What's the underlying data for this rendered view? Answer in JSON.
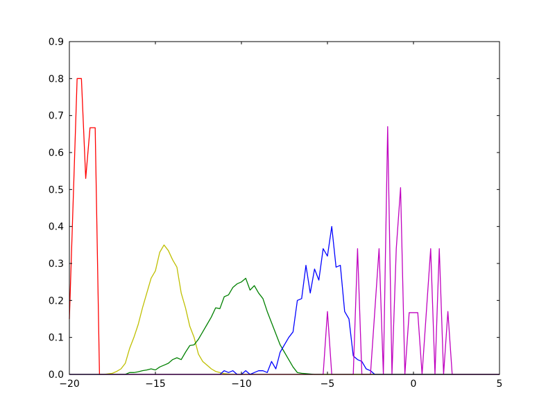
{
  "chart_data": {
    "type": "line",
    "xlim": [
      -20,
      5
    ],
    "xticks": [
      {
        "value": -20,
        "label": "−20"
      },
      {
        "value": -15,
        "label": "−15"
      },
      {
        "value": -10,
        "label": "−10"
      },
      {
        "value": -5,
        "label": "−5"
      },
      0,
      5
    ],
    "ylim": [
      0,
      0.9
    ],
    "yticks": [
      {
        "value": 0,
        "label": "0.0"
      },
      0.1,
      0.2,
      0.3,
      0.4,
      0.5,
      0.6,
      0.7,
      0.8,
      0.9
    ],
    "grid": false,
    "series": [
      {
        "color": "#ff0000",
        "x": [
          -20,
          -19.55,
          -19.3,
          -19.05,
          -18.8,
          -18.5,
          -18.25,
          5
        ],
        "values": [
          0.15,
          0.8,
          0.8,
          0.53,
          0.667,
          0.667,
          0,
          0
        ]
      },
      {
        "color": "#bfbf00",
        "x": [
          -20,
          -18,
          -17.5,
          -17.25,
          -17,
          -16.75,
          -16.5,
          -16.25,
          -16,
          -15.75,
          -15.5,
          -15.25,
          -15,
          -14.75,
          -14.5,
          -14.25,
          -14,
          -13.75,
          -13.5,
          -13.25,
          -13,
          -12.75,
          -12.5,
          -12.25,
          -12,
          -11.75,
          -11.5,
          -11.25,
          -11,
          -10.5,
          5
        ],
        "values": [
          0,
          0,
          0.003,
          0.008,
          0.015,
          0.03,
          0.07,
          0.1,
          0.135,
          0.18,
          0.22,
          0.26,
          0.28,
          0.33,
          0.35,
          0.335,
          0.31,
          0.29,
          0.22,
          0.18,
          0.13,
          0.1,
          0.055,
          0.035,
          0.025,
          0.015,
          0.008,
          0.005,
          0.002,
          0,
          0
        ]
      },
      {
        "color": "#008000",
        "x": [
          -20,
          -16.75,
          -16.5,
          -16.25,
          -16,
          -15.75,
          -15.5,
          -15.25,
          -15,
          -14.75,
          -14.5,
          -14.25,
          -14,
          -13.75,
          -13.5,
          -13.25,
          -13,
          -12.75,
          -12.5,
          -12.25,
          -12,
          -11.75,
          -11.5,
          -11.25,
          -11,
          -10.75,
          -10.5,
          -10.25,
          -10,
          -9.75,
          -9.5,
          -9.25,
          -9,
          -8.75,
          -8.5,
          -8.25,
          -8,
          -7.75,
          -7.5,
          -7.25,
          -7,
          -6.75,
          -6.5,
          -6.25,
          -5.75,
          5
        ],
        "values": [
          0,
          0,
          0.005,
          0.005,
          0.007,
          0.01,
          0.012,
          0.015,
          0.012,
          0.02,
          0.025,
          0.03,
          0.04,
          0.045,
          0.04,
          0.06,
          0.078,
          0.08,
          0.095,
          0.115,
          0.135,
          0.155,
          0.18,
          0.178,
          0.21,
          0.215,
          0.235,
          0.245,
          0.25,
          0.26,
          0.228,
          0.24,
          0.22,
          0.205,
          0.17,
          0.14,
          0.11,
          0.08,
          0.06,
          0.04,
          0.02,
          0.005,
          0.003,
          0.002,
          0,
          0
        ]
      },
      {
        "color": "#0000ff",
        "x": [
          -20,
          -11.25,
          -11,
          -10.75,
          -10.5,
          -10.25,
          -10,
          -9.75,
          -9.5,
          -9.25,
          -9,
          -8.75,
          -8.5,
          -8.25,
          -8,
          -7.75,
          -7.5,
          -7.25,
          -7,
          -6.75,
          -6.5,
          -6.25,
          -6,
          -5.75,
          -5.5,
          -5.25,
          -5,
          -4.75,
          -4.5,
          -4.25,
          -4,
          -3.75,
          -3.5,
          -3.25,
          -3,
          -2.75,
          -2.5,
          -2.25,
          5
        ],
        "values": [
          0,
          0,
          0.01,
          0.005,
          0.01,
          0,
          0,
          0.01,
          0,
          0.005,
          0.01,
          0.01,
          0.005,
          0.035,
          0.015,
          0.06,
          0.08,
          0.1,
          0.115,
          0.2,
          0.205,
          0.295,
          0.22,
          0.285,
          0.255,
          0.34,
          0.32,
          0.4,
          0.29,
          0.295,
          0.17,
          0.15,
          0.05,
          0.04,
          0.035,
          0.015,
          0.01,
          0,
          0
        ]
      },
      {
        "color": "#bf00bf",
        "x": [
          -20,
          -5.25,
          -5,
          -4.75,
          -3.5,
          -3.25,
          -3,
          -2.5,
          -2,
          -1.75,
          -1.5,
          -1.25,
          -1,
          -0.75,
          -0.5,
          -0.25,
          0.25,
          0.5,
          1,
          1.25,
          1.5,
          1.75,
          2,
          2.25,
          5
        ],
        "values": [
          0,
          0,
          0.17,
          0,
          0,
          0.34,
          0,
          0,
          0.34,
          0,
          0.67,
          0,
          0.34,
          0.505,
          0,
          0.167,
          0.167,
          0,
          0.34,
          0,
          0.34,
          0,
          0.17,
          0,
          0
        ]
      }
    ]
  }
}
